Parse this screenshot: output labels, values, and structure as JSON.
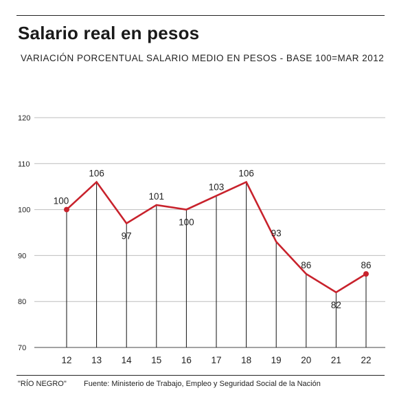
{
  "title": "Salario real en pesos",
  "subtitle": "VARIACIÓN PORCENTUAL SALARIO MEDIO EN PESOS - BASE 100=MAR 2012",
  "credit": "\"RÍO NEGRO\"",
  "source": "Fuente: Ministerio de Trabajo, Empleo y Seguridad Social de la Nación",
  "colors": {
    "line": "#c8222c",
    "grid": "#bdbdbd",
    "stem": "#111111"
  },
  "chart_data": {
    "type": "line",
    "categories": [
      "12",
      "13",
      "14",
      "15",
      "16",
      "17",
      "18",
      "19",
      "20",
      "21",
      "22"
    ],
    "values": [
      100,
      106,
      97,
      101,
      100,
      103,
      106,
      93,
      86,
      82,
      86
    ],
    "labels": [
      "100",
      "106",
      "97",
      "101",
      "100",
      "103",
      "106",
      "93",
      "86",
      "82",
      "86"
    ],
    "ylim": [
      70,
      120
    ],
    "yticks": [
      70,
      80,
      90,
      100,
      110,
      120
    ],
    "grid": true,
    "markers": "first-and-last"
  }
}
